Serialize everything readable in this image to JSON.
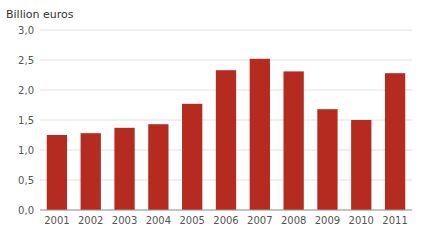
{
  "chart_data": {
    "type": "bar",
    "ylabel": "Billion euros",
    "categories": [
      "2001",
      "2002",
      "2003",
      "2004",
      "2005",
      "2006",
      "2007",
      "2008",
      "2009",
      "2010",
      "2011"
    ],
    "values": [
      1.25,
      1.28,
      1.37,
      1.43,
      1.77,
      2.33,
      2.52,
      2.31,
      1.68,
      1.5,
      2.28
    ],
    "color": "#b52b20",
    "ylim": [
      0,
      3.0
    ],
    "yticks": [
      {
        "value": 0.0,
        "label": "0,0"
      },
      {
        "value": 0.5,
        "label": "0,5"
      },
      {
        "value": 1.0,
        "label": "1,0"
      },
      {
        "value": 1.5,
        "label": "1,5"
      },
      {
        "value": 2.0,
        "label": "2,0"
      },
      {
        "value": 2.5,
        "label": "2,5"
      },
      {
        "value": 3.0,
        "label": "3,0"
      }
    ],
    "grid": true
  }
}
